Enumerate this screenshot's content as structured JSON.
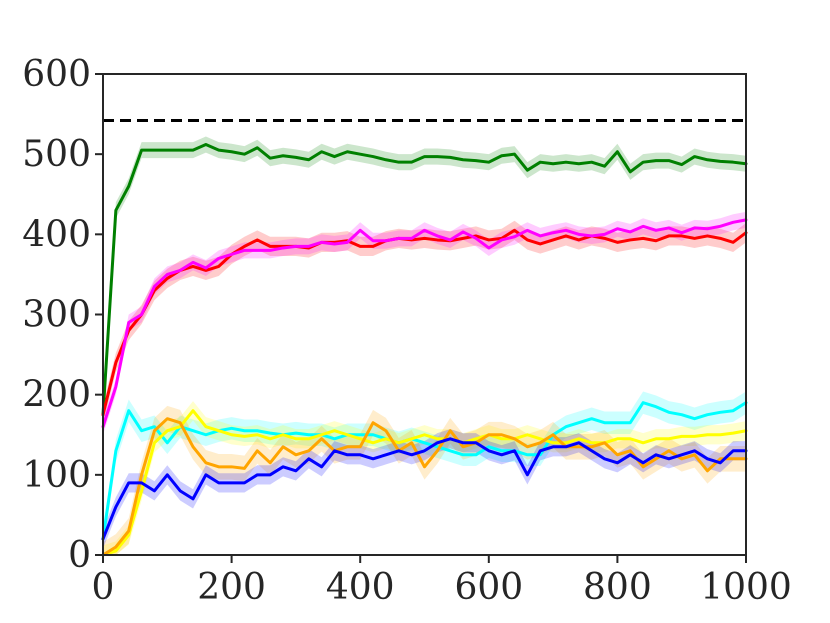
{
  "chart_data": {
    "type": "line",
    "title": "",
    "xlabel": "",
    "ylabel": "",
    "xlim": [
      0,
      1000
    ],
    "ylim": [
      0,
      600
    ],
    "xticks": [
      0,
      200,
      400,
      600,
      800,
      1000
    ],
    "yticks": [
      0,
      100,
      200,
      300,
      400,
      500,
      600
    ],
    "grid": false,
    "legend": "none",
    "reference_line": {
      "y": 542,
      "color": "#000000",
      "style": "dashed"
    },
    "x": [
      0,
      20,
      40,
      60,
      80,
      100,
      120,
      140,
      160,
      180,
      200,
      220,
      240,
      260,
      280,
      300,
      320,
      340,
      360,
      380,
      400,
      420,
      440,
      460,
      480,
      500,
      520,
      540,
      560,
      580,
      600,
      620,
      640,
      660,
      680,
      700,
      720,
      740,
      760,
      780,
      800,
      820,
      840,
      860,
      880,
      900,
      920,
      940,
      960,
      980,
      1000
    ],
    "series": [
      {
        "color": "#008000",
        "band": 10,
        "values": [
          175,
          430,
          460,
          505,
          505,
          505,
          505,
          505,
          512,
          505,
          503,
          500,
          508,
          495,
          498,
          496,
          493,
          503,
          497,
          503,
          500,
          497,
          493,
          490,
          490,
          497,
          497,
          496,
          493,
          492,
          490,
          498,
          500,
          480,
          490,
          488,
          490,
          488,
          490,
          485,
          503,
          478,
          490,
          492,
          492,
          487,
          497,
          493,
          491,
          490,
          488
        ]
      },
      {
        "color": "#ff0000",
        "band": 12,
        "values": [
          175,
          240,
          280,
          300,
          330,
          345,
          355,
          360,
          355,
          360,
          375,
          385,
          393,
          385,
          385,
          385,
          383,
          390,
          390,
          392,
          385,
          385,
          392,
          395,
          393,
          395,
          393,
          392,
          395,
          398,
          393,
          395,
          405,
          393,
          388,
          393,
          398,
          393,
          398,
          395,
          390,
          393,
          395,
          392,
          398,
          398,
          395,
          398,
          395,
          390,
          402
        ]
      },
      {
        "color": "#ff00ff",
        "band": 10,
        "values": [
          160,
          210,
          290,
          300,
          335,
          350,
          355,
          365,
          358,
          370,
          375,
          380,
          380,
          380,
          383,
          385,
          385,
          390,
          388,
          390,
          405,
          392,
          392,
          395,
          395,
          405,
          398,
          393,
          403,
          395,
          383,
          393,
          397,
          405,
          398,
          402,
          405,
          400,
          398,
          400,
          407,
          403,
          410,
          405,
          408,
          402,
          408,
          407,
          410,
          415,
          418
        ]
      },
      {
        "color": "#00ffff",
        "band": 14,
        "values": [
          20,
          130,
          180,
          155,
          160,
          140,
          160,
          155,
          150,
          155,
          158,
          155,
          155,
          152,
          150,
          152,
          150,
          150,
          145,
          150,
          150,
          150,
          145,
          140,
          145,
          140,
          135,
          130,
          125,
          125,
          135,
          130,
          130,
          125,
          125,
          150,
          160,
          165,
          170,
          165,
          165,
          165,
          190,
          185,
          178,
          175,
          170,
          175,
          178,
          180,
          190
        ]
      },
      {
        "color": "#ffff00",
        "band": 12,
        "values": [
          0,
          5,
          25,
          80,
          140,
          155,
          160,
          180,
          160,
          155,
          150,
          148,
          150,
          145,
          150,
          145,
          145,
          150,
          155,
          150,
          145,
          140,
          145,
          140,
          145,
          150,
          145,
          145,
          140,
          145,
          150,
          145,
          145,
          150,
          145,
          140,
          140,
          145,
          140,
          140,
          145,
          145,
          140,
          145,
          145,
          148,
          148,
          150,
          150,
          152,
          155
        ]
      },
      {
        "color": "#ffa500",
        "band": 16,
        "values": [
          0,
          10,
          30,
          100,
          155,
          170,
          165,
          135,
          115,
          110,
          110,
          108,
          130,
          115,
          135,
          125,
          130,
          145,
          130,
          135,
          135,
          165,
          155,
          130,
          140,
          110,
          130,
          155,
          135,
          140,
          150,
          150,
          145,
          135,
          140,
          150,
          135,
          135,
          135,
          140,
          125,
          130,
          110,
          120,
          130,
          120,
          125,
          105,
          120,
          120,
          120
        ]
      },
      {
        "color": "#0000ff",
        "band": 12,
        "values": [
          20,
          60,
          90,
          90,
          80,
          100,
          80,
          70,
          100,
          90,
          90,
          90,
          100,
          100,
          110,
          105,
          120,
          110,
          130,
          125,
          125,
          120,
          125,
          130,
          125,
          130,
          140,
          145,
          140,
          140,
          130,
          125,
          130,
          100,
          130,
          135,
          135,
          140,
          130,
          120,
          115,
          125,
          115,
          125,
          120,
          125,
          130,
          120,
          115,
          130,
          130
        ]
      }
    ]
  }
}
